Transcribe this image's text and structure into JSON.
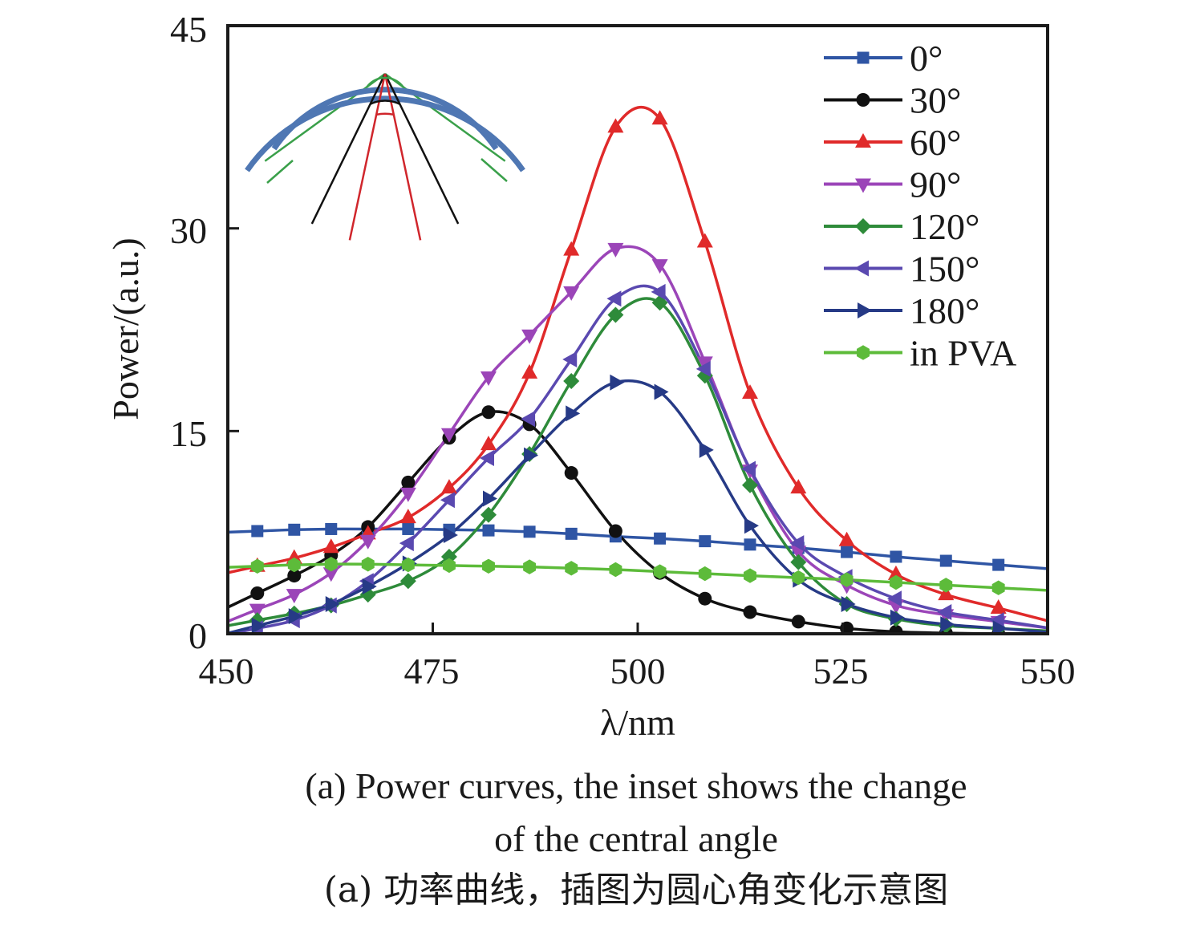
{
  "chart_data": {
    "type": "line",
    "title": "",
    "xlabel": "λ/nm",
    "ylabel": "Power/(a.u.)",
    "xlim": [
      450,
      550
    ],
    "ylim": [
      0,
      45
    ],
    "xticks": [
      450,
      475,
      500,
      525,
      550
    ],
    "yticks": [
      0,
      15,
      30,
      45
    ],
    "grid": false,
    "legend_position": "top-right",
    "x": [
      453.6,
      458.1,
      462.6,
      467.1,
      472.0,
      477.0,
      481.8,
      486.8,
      491.9,
      497.3,
      502.7,
      508.2,
      513.7,
      519.6,
      525.5,
      531.5,
      537.6,
      544.0
    ],
    "series": [
      {
        "name": "0°",
        "color": "#2f55a4",
        "marker": "square",
        "values": [
          7.6,
          7.7,
          7.75,
          7.75,
          7.75,
          7.7,
          7.65,
          7.55,
          7.4,
          7.2,
          7.05,
          6.85,
          6.6,
          6.35,
          6.05,
          5.7,
          5.4,
          5.1
        ]
      },
      {
        "name": "30°",
        "color": "#111111",
        "marker": "circle",
        "values": [
          3.0,
          4.3,
          5.8,
          7.9,
          11.2,
          14.5,
          16.4,
          15.5,
          11.9,
          7.6,
          4.5,
          2.6,
          1.6,
          0.9,
          0.4,
          0.15,
          0.05,
          0.0
        ]
      },
      {
        "name": "60°",
        "color": "#e02a2a",
        "marker": "triangle-up",
        "values": [
          5.0,
          5.6,
          6.4,
          7.4,
          8.6,
          10.8,
          14.0,
          19.3,
          28.4,
          37.5,
          38.1,
          29.0,
          17.8,
          10.8,
          6.9,
          4.4,
          2.9,
          1.9
        ]
      },
      {
        "name": "90°",
        "color": "#9b45b8",
        "marker": "triangle-down",
        "values": [
          1.8,
          2.9,
          4.5,
          6.9,
          10.4,
          14.8,
          19.0,
          22.1,
          25.3,
          28.5,
          27.3,
          20.1,
          12.1,
          6.1,
          3.6,
          2.1,
          1.4,
          0.9
        ]
      },
      {
        "name": "120°",
        "color": "#2e8b3a",
        "marker": "diamond",
        "values": [
          1.0,
          1.5,
          2.1,
          2.9,
          3.9,
          5.7,
          8.8,
          13.3,
          18.7,
          23.6,
          24.5,
          19.1,
          11.0,
          5.3,
          2.2,
          1.1,
          0.6,
          0.4
        ]
      },
      {
        "name": "150°",
        "color": "#5a49b0",
        "marker": "triangle-left",
        "values": [
          0.4,
          1.0,
          2.1,
          3.9,
          6.7,
          9.9,
          13.0,
          15.9,
          20.3,
          24.8,
          25.3,
          19.6,
          12.2,
          6.7,
          4.2,
          2.6,
          1.6,
          1.0
        ]
      },
      {
        "name": "180°",
        "color": "#263a86",
        "marker": "triangle-right",
        "values": [
          0.6,
          1.3,
          2.2,
          3.5,
          5.2,
          7.3,
          10.0,
          13.2,
          16.3,
          18.6,
          17.9,
          13.6,
          8.0,
          4.0,
          2.2,
          1.2,
          0.7,
          0.4
        ]
      },
      {
        "name": "in PVA",
        "color": "#5dbb3a",
        "marker": "hexagon",
        "values": [
          5.0,
          5.1,
          5.15,
          5.15,
          5.1,
          5.05,
          5.0,
          4.95,
          4.85,
          4.75,
          4.6,
          4.45,
          4.3,
          4.15,
          4.0,
          3.8,
          3.6,
          3.4
        ]
      }
    ],
    "inset": {
      "description": "Schematic of the central angle change: circular sector with blue arcs and green/black/red radial lines",
      "colors": {
        "arc": "#4f77b3",
        "outer_sector": "#3aa04a",
        "mid_sector": "#111111",
        "inner_sector": "#d0262c"
      }
    }
  },
  "caption": {
    "english_line1": "(a) Power curves, the inset shows the change",
    "english_line2": "of the central angle",
    "chinese": "(a) 功率曲线，插图为圆心角变化示意图"
  }
}
